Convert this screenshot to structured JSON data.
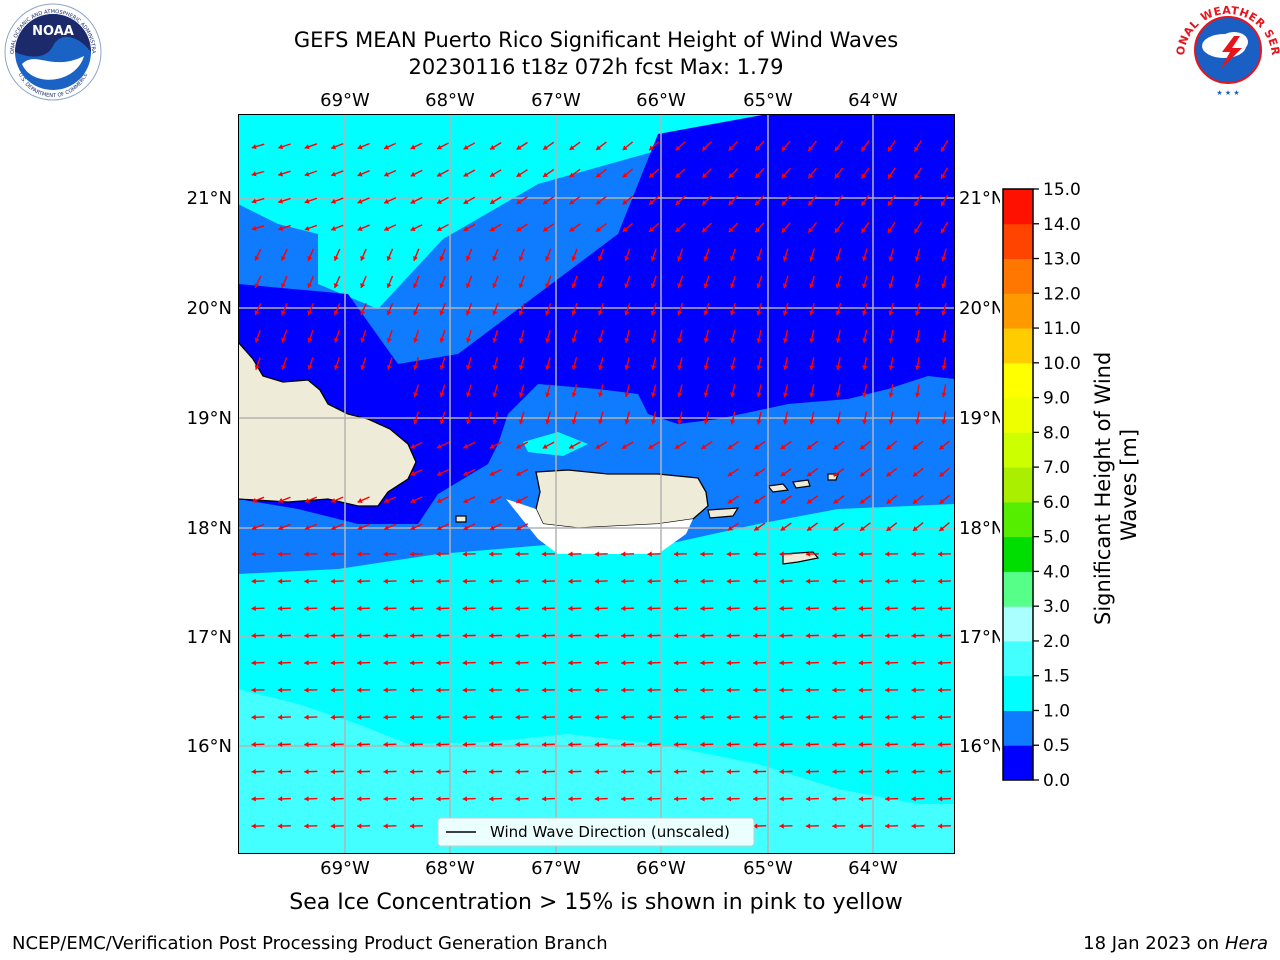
{
  "header": {
    "title_line1": "GEFS MEAN Puerto Rico Significant Height of Wind Waves",
    "title_line2": "20230116 t18z 072h fcst   Max: 1.79"
  },
  "logos": {
    "left": {
      "icon": "noaa-logo",
      "ring_text": "NATIONAL OCEANIC AND ATMOSPHERIC ADMINISTRATION",
      "ring_text_bottom": "U.S. DEPARTMENT OF COMMERCE",
      "center_text": "NOAA"
    },
    "right": {
      "icon": "nws-logo",
      "ring_text": "NATIONAL WEATHER SERVICE"
    }
  },
  "map": {
    "lon_labels": [
      "69°W",
      "68°W",
      "67°W",
      "66°W",
      "65°W",
      "64°W"
    ],
    "lat_labels": [
      "21°N",
      "20°N",
      "19°N",
      "18°N",
      "17°N",
      "16°N"
    ],
    "legend_label": "Wind Wave Direction (unscaled)",
    "colors": {
      "band_0_0_5": "#0000ff",
      "band_0_5_1_0": "#0f7bff",
      "band_1_0_1_5": "#00ffff",
      "band_1_5_2_0": "#44ffff",
      "land": "#eeebd8",
      "arrow": "#ff0000"
    }
  },
  "colorbar": {
    "label": "Significant Height of Wind Waves [m]",
    "ticks": [
      "0.0",
      "0.5",
      "1.0",
      "1.5",
      "2.0",
      "3.0",
      "4.0",
      "5.0",
      "6.0",
      "7.0",
      "8.0",
      "9.0",
      "10.0",
      "11.0",
      "12.0",
      "13.0",
      "14.0",
      "15.0"
    ],
    "colors": [
      "#0000ff",
      "#0f7bff",
      "#00ffff",
      "#44ffff",
      "#aaffff",
      "#55ff88",
      "#00dd00",
      "#55ee00",
      "#aaee00",
      "#ccff00",
      "#eeff00",
      "#ffff00",
      "#ffcc00",
      "#ff9900",
      "#ff7700",
      "#ff4400",
      "#ff1100"
    ]
  },
  "notes": {
    "ice": "Sea Ice Concentration > 15% is shown in pink to yellow"
  },
  "footer": {
    "left": "NCEP/EMC/Verification Post Processing Product Generation Branch",
    "right_prefix": "18 Jan 2023 on ",
    "right_host": "Hera"
  }
}
